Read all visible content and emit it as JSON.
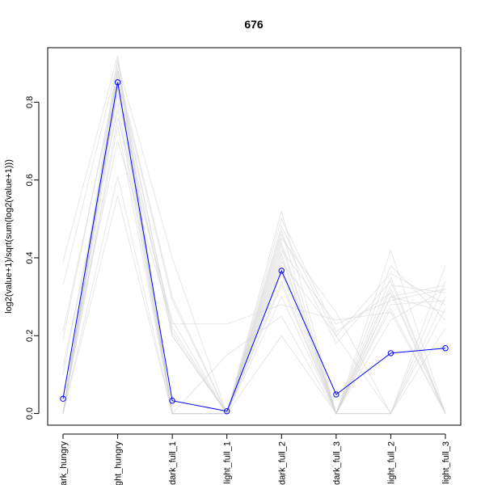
{
  "chart_data": {
    "type": "line",
    "title": "676",
    "xlabel": "",
    "ylabel": "log2(value+1)/sqrt(sum(log2(value+1)))",
    "categories": [
      "dark_hungry",
      "light_hungry",
      "dark_full_1",
      "light_full_1",
      "dark_full_2",
      "dark_full_3",
      "light_full_2",
      "light_full_3"
    ],
    "ylim": [
      -0.03,
      0.94
    ],
    "yticks": [
      0.0,
      0.2,
      0.4,
      0.6,
      0.8
    ],
    "ytick_labels": [
      "0.0",
      "0.2",
      "0.4",
      "0.6",
      "0.8"
    ],
    "grid": false,
    "highlight_color": "#0000ff",
    "background_color": "#d3d3d3",
    "highlight_series": {
      "values": [
        0.038,
        0.851,
        0.033,
        0.006,
        0.367,
        0.049,
        0.155,
        0.168
      ]
    },
    "background_series": [
      [
        0.39,
        0.92,
        0.0,
        0.0,
        0.52,
        0.0,
        0.42,
        0.0
      ],
      [
        0.33,
        0.9,
        0.4,
        0.0,
        0.45,
        0.26,
        0.0,
        0.38
      ],
      [
        0.19,
        0.88,
        0.3,
        0.0,
        0.48,
        0.2,
        0.36,
        0.28
      ],
      [
        0.21,
        0.86,
        0.22,
        0.0,
        0.42,
        0.23,
        0.29,
        0.32
      ],
      [
        0.0,
        0.84,
        0.2,
        0.0,
        0.4,
        0.0,
        0.32,
        0.0
      ],
      [
        0.0,
        0.8,
        0.0,
        0.0,
        0.36,
        0.0,
        0.3,
        0.26
      ],
      [
        0.12,
        0.78,
        0.0,
        0.0,
        0.33,
        0.0,
        0.27,
        0.0
      ],
      [
        0.0,
        0.74,
        0.0,
        0.0,
        0.3,
        0.0,
        0.0,
        0.3
      ],
      [
        0.05,
        0.7,
        0.23,
        0.23,
        0.28,
        0.24,
        0.26,
        0.0
      ],
      [
        0.0,
        0.61,
        0.0,
        0.15,
        0.25,
        0.0,
        0.24,
        0.32
      ],
      [
        0.0,
        0.56,
        0.0,
        0.0,
        0.2,
        0.0,
        0.0,
        0.22
      ],
      [
        0.0,
        0.87,
        0.29,
        0.0,
        0.46,
        0.18,
        0.34,
        0.0
      ],
      [
        0.0,
        0.89,
        0.0,
        0.0,
        0.44,
        0.0,
        0.38,
        0.24
      ],
      [
        0.1,
        0.82,
        0.2,
        0.0,
        0.38,
        0.0,
        0.0,
        0.34
      ],
      [
        0.0,
        0.91,
        0.0,
        0.0,
        0.5,
        0.21,
        0.31,
        0.0
      ],
      [
        0.0,
        0.76,
        0.24,
        0.0,
        0.34,
        0.0,
        0.28,
        0.29
      ],
      [
        0.0,
        0.85,
        0.0,
        0.0,
        0.43,
        0.0,
        0.33,
        0.31
      ],
      [
        0.0,
        0.83,
        0.0,
        0.0,
        0.39,
        0.2,
        0.0,
        0.27
      ],
      [
        0.0,
        0.88,
        0.21,
        0.0,
        0.47,
        0.0,
        0.35,
        0.0
      ],
      [
        0.0,
        0.86,
        0.0,
        0.0,
        0.41,
        0.0,
        0.3,
        0.33
      ]
    ]
  }
}
